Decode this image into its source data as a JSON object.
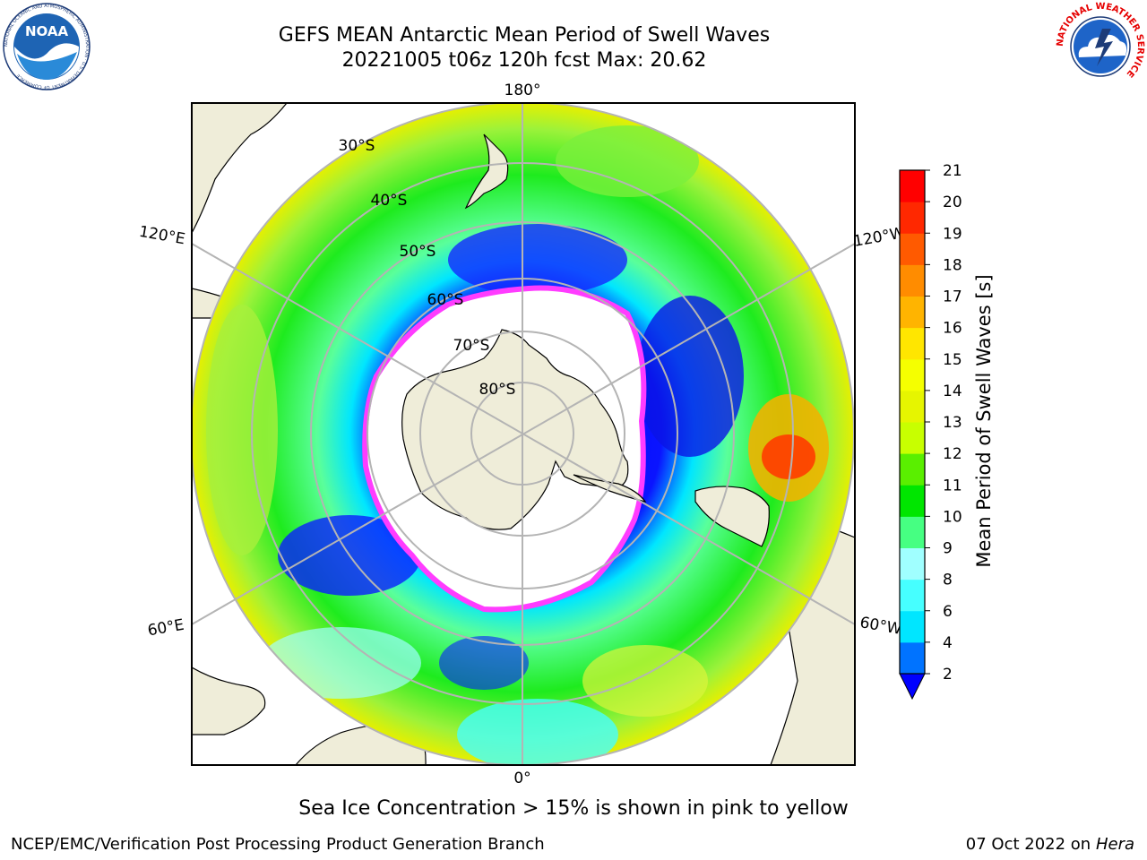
{
  "title_line1": "GEFS MEAN Antarctic Mean Period of Swell Waves",
  "title_line2": "20221005 t06z 120h fcst   Max: 20.62",
  "subtitle": "Sea Ice Concentration > 15% is shown in pink to yellow",
  "footer_left": "NCEP/EMC/Verification Post Processing Product Generation Branch",
  "footer_date": "07 Oct 2022 on ",
  "footer_machine": "Hera",
  "logos": {
    "noaa": {
      "text": "NOAA",
      "ring_text": "NATIONAL OCEANIC AND ATMOSPHERIC ADMINISTRATION · U.S. DEPARTMENT OF COMMERCE"
    },
    "nws": {
      "ring_text": "NATIONAL WEATHER SERVICE"
    }
  },
  "map": {
    "projection": "south-polar-stereographic",
    "longitude_labels": [
      "180°",
      "120°E",
      "120°W",
      "60°E",
      "60°W",
      "0°"
    ],
    "latitude_labels": [
      "30°S",
      "40°S",
      "50°S",
      "60°S",
      "70°S",
      "80°S"
    ],
    "land_color": "#efedd9",
    "grid_color": "#b4b4b4",
    "ice_edge_colors": [
      "#ff3cff",
      "#ffb43c",
      "#ffff00"
    ]
  },
  "colorbar": {
    "label": "Mean Period of Swell Waves [s]",
    "ticks": [
      "2",
      "4",
      "6",
      "8",
      "9",
      "10",
      "11",
      "12",
      "13",
      "14",
      "15",
      "16",
      "17",
      "18",
      "19",
      "20",
      "21"
    ],
    "colors": [
      "#0073ff",
      "#00e6ff",
      "#46ffff",
      "#a0ffff",
      "#46ff82",
      "#00e600",
      "#5aef00",
      "#c8ff00",
      "#e6f500",
      "#f5ff00",
      "#ffe600",
      "#ffb400",
      "#ff8c00",
      "#ff5a00",
      "#ff2800",
      "#ff0000"
    ],
    "extend_color": "#0000ff"
  }
}
